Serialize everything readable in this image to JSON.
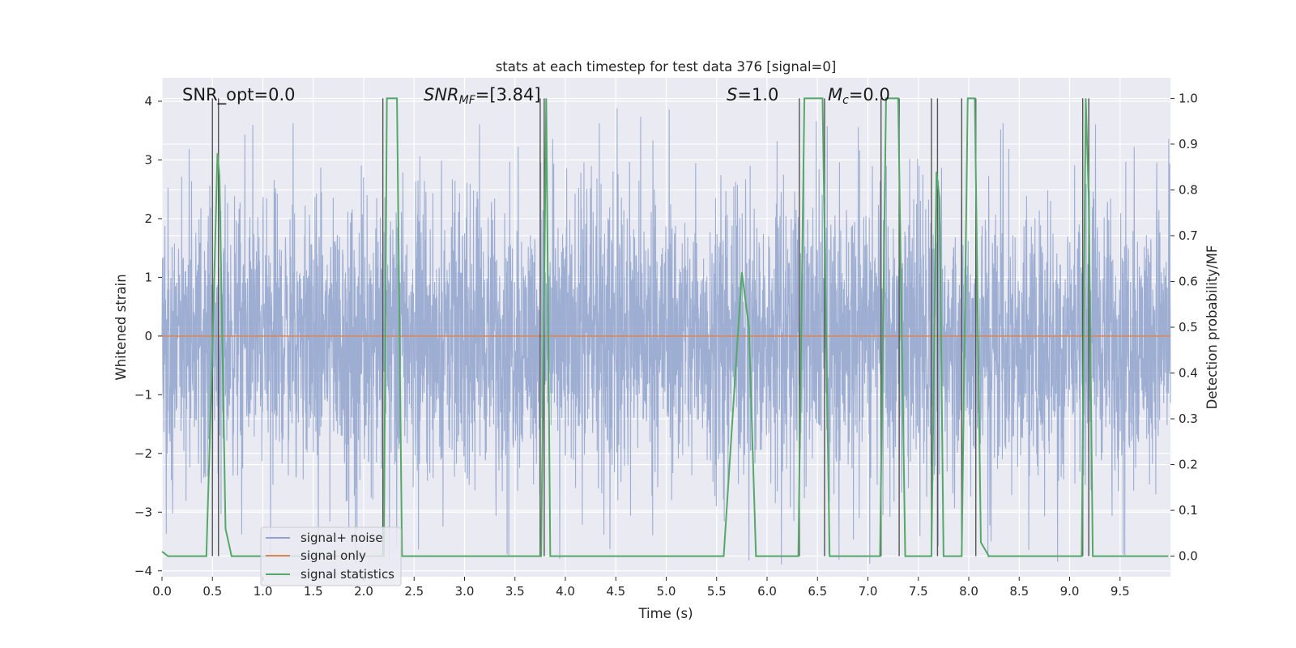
{
  "chart_data": {
    "type": "line",
    "title": "stats at each timestep for test data 376 [signal=0]",
    "xlabel": "Time (s)",
    "ylabel": "Whitened strain",
    "y2label": "Detection probability/MF",
    "xlim": [
      0,
      10
    ],
    "ylim": [
      -4.1,
      4.4
    ],
    "y2lim": [
      -0.045,
      1.045
    ],
    "x_ticks": [
      "0.0",
      "0.5",
      "1.0",
      "1.5",
      "2.0",
      "2.5",
      "3.0",
      "3.5",
      "4.0",
      "4.5",
      "5.0",
      "5.5",
      "6.0",
      "6.5",
      "7.0",
      "7.5",
      "8.0",
      "8.5",
      "9.0",
      "9.5"
    ],
    "x_tick_values": [
      0,
      0.5,
      1,
      1.5,
      2,
      2.5,
      3,
      3.5,
      4,
      4.5,
      5,
      5.5,
      6,
      6.5,
      7,
      7.5,
      8,
      8.5,
      9,
      9.5
    ],
    "y_ticks": [
      "−4",
      "−3",
      "−2",
      "−1",
      "0",
      "1",
      "2",
      "3",
      "4"
    ],
    "y_tick_values": [
      -4,
      -3,
      -2,
      -1,
      0,
      1,
      2,
      3,
      4
    ],
    "y2_ticks": [
      "0.0",
      "0.1",
      "0.2",
      "0.3",
      "0.4",
      "0.5",
      "0.6",
      "0.7",
      "0.8",
      "0.9",
      "1.0"
    ],
    "y2_tick_values": [
      0,
      0.1,
      0.2,
      0.3,
      0.4,
      0.5,
      0.6,
      0.7,
      0.8,
      0.9,
      1.0
    ],
    "grid": true,
    "legend_position": "lower-left",
    "annotations": {
      "snr_opt": "SNR_opt=0.0",
      "snr_mf_base": "SNR",
      "snr_mf_sub": "MF",
      "snr_mf_val": "=[3.84]",
      "s_base": "S",
      "s_val": "=1.0",
      "mc_base": "M",
      "mc_sub": "c",
      "mc_val": "=0.0"
    },
    "series": [
      {
        "name": "signal+ noise",
        "color": "#8fa3cc",
        "kind": "noise",
        "typical_abs_max": 2.0,
        "peak_abs_max": 3.9
      },
      {
        "name": "signal only",
        "color": "#dd8452",
        "x": [
          0,
          10
        ],
        "y": [
          0,
          0
        ]
      },
      {
        "name": "signal statistics",
        "color": "#55a868",
        "axis": "right",
        "x": [
          0.0,
          0.06,
          0.3,
          0.44,
          0.5,
          0.55,
          0.57,
          0.63,
          0.69,
          2.2,
          2.23,
          2.27,
          2.33,
          2.38,
          3.76,
          3.79,
          3.81,
          3.85,
          5.57,
          5.75,
          5.82,
          5.89,
          6.31,
          6.37,
          6.55,
          6.62,
          7.12,
          7.18,
          7.3,
          7.37,
          7.63,
          7.68,
          7.71,
          7.75,
          7.93,
          7.99,
          8.06,
          8.12,
          8.2,
          9.12,
          9.16,
          9.19,
          9.23,
          9.98
        ],
        "y": [
          0.01,
          0.0,
          0.0,
          0.0,
          0.45,
          0.88,
          0.83,
          0.06,
          0.0,
          0.0,
          1.0,
          1.0,
          1.0,
          0.0,
          0.0,
          0.59,
          1.0,
          0.0,
          0.0,
          0.62,
          0.5,
          0.0,
          0.0,
          1.0,
          1.0,
          0.0,
          0.0,
          1.0,
          1.0,
          0.0,
          0.0,
          0.84,
          0.78,
          0.0,
          0.0,
          1.0,
          1.0,
          0.03,
          0.0,
          0.0,
          1.0,
          0.78,
          0.0,
          0.0
        ]
      },
      {
        "name": "",
        "color": "#555555",
        "kind": "vlines",
        "x": [
          0.5,
          0.56,
          2.19,
          3.75,
          3.79,
          6.32,
          6.57,
          7.13,
          7.31,
          7.63,
          7.69,
          7.93,
          8.07,
          9.13,
          9.19
        ]
      }
    ]
  }
}
